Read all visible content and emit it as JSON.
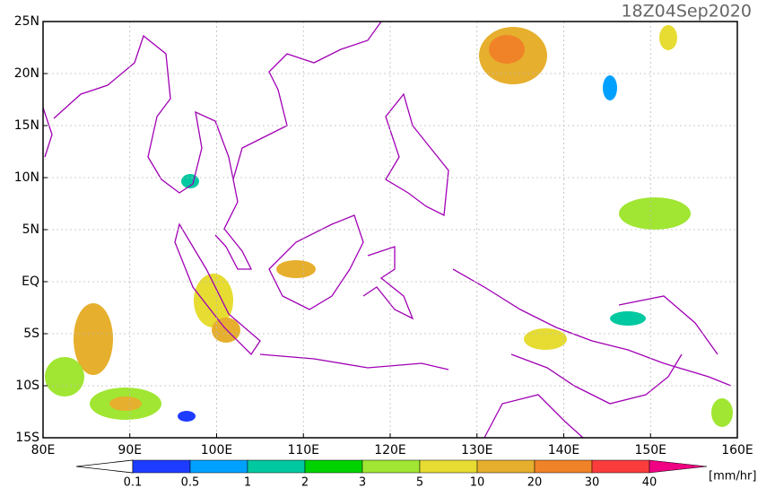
{
  "map": {
    "title": "18Z04Sep2020",
    "xlim": [
      80,
      160
    ],
    "ylim": [
      -15,
      25
    ],
    "lon_ticks": [
      {
        "value": 80,
        "label": "80E"
      },
      {
        "value": 90,
        "label": "90E"
      },
      {
        "value": 100,
        "label": "100E"
      },
      {
        "value": 110,
        "label": "110E"
      },
      {
        "value": 120,
        "label": "120E"
      },
      {
        "value": 130,
        "label": "130E"
      },
      {
        "value": 140,
        "label": "140E"
      },
      {
        "value": 150,
        "label": "150E"
      },
      {
        "value": 160,
        "label": "160E"
      }
    ],
    "lat_ticks": [
      {
        "value": 25,
        "label": "25N"
      },
      {
        "value": 20,
        "label": "20N"
      },
      {
        "value": 15,
        "label": "15N"
      },
      {
        "value": 10,
        "label": "10N"
      },
      {
        "value": 5,
        "label": "5N"
      },
      {
        "value": 0,
        "label": "EQ"
      },
      {
        "value": -5,
        "label": "5S"
      },
      {
        "value": -10,
        "label": "10S"
      },
      {
        "value": -15,
        "label": "15S"
      }
    ],
    "grid": true
  },
  "colorbar": {
    "levels": [
      0.1,
      0.5,
      1,
      2,
      3,
      5,
      10,
      20,
      30,
      40
    ],
    "colors": [
      "#1e3cff",
      "#00a0ff",
      "#00c8a0",
      "#00d200",
      "#a0e632",
      "#e6dc32",
      "#e6af2d",
      "#f08228",
      "#fa3c3c",
      "#f00082"
    ],
    "unit": "[mm/hr]"
  }
}
